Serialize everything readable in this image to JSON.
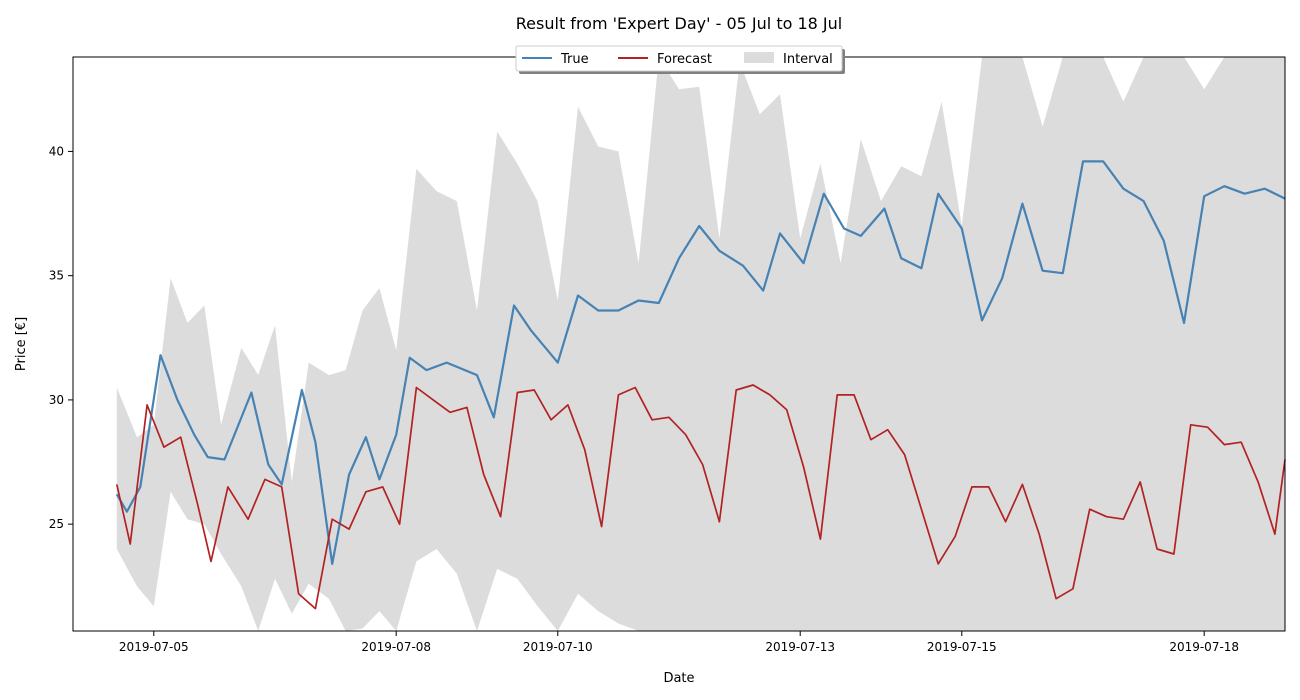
{
  "chart_data": {
    "type": "line",
    "title": "Result from 'Expert Day' - 05 Jul to 18 Jul",
    "xlabel": "Date",
    "ylabel": "Price [€]",
    "x_range": [
      "2019-07-04",
      "2019-07-19"
    ],
    "ylim": [
      20.7,
      43.8
    ],
    "x_ticks": [
      "2019-07-05",
      "2019-07-08",
      "2019-07-10",
      "2019-07-13",
      "2019-07-15",
      "2019-07-18"
    ],
    "y_ticks": [
      25,
      30,
      35,
      40
    ],
    "grid": false,
    "legend_position": "top-center",
    "colors": {
      "true": "#4682b4",
      "forecast": "#b22222",
      "interval": "#dcdcdc"
    },
    "legend": [
      {
        "label": "True",
        "kind": "line",
        "color": "#4682b4"
      },
      {
        "label": "Forecast",
        "kind": "line",
        "color": "#b22222"
      },
      {
        "label": "Interval",
        "kind": "patch",
        "color": "#dcdcdc"
      }
    ],
    "series": [
      {
        "name": "True",
        "x": [
          "2019-07-04 13:00",
          "2019-07-04 16:00",
          "2019-07-04 20:00",
          "2019-07-05 02:00",
          "2019-07-05 07:00",
          "2019-07-05 12:00",
          "2019-07-05 16:00",
          "2019-07-05 21:00",
          "2019-07-06 05:00",
          "2019-07-06 10:00",
          "2019-07-06 14:00",
          "2019-07-06 20:00",
          "2019-07-07 00:00",
          "2019-07-07 05:00",
          "2019-07-07 10:00",
          "2019-07-07 15:00",
          "2019-07-07 19:00",
          "2019-07-08 00:00",
          "2019-07-08 04:00",
          "2019-07-08 09:00",
          "2019-07-08 15:00",
          "2019-07-09 00:00",
          "2019-07-09 05:00",
          "2019-07-09 11:00",
          "2019-07-09 16:00",
          "2019-07-10 00:00",
          "2019-07-10 06:00",
          "2019-07-10 12:00",
          "2019-07-10 18:00",
          "2019-07-11 00:00",
          "2019-07-11 06:00",
          "2019-07-11 12:00",
          "2019-07-11 18:00",
          "2019-07-12 00:00",
          "2019-07-12 07:00",
          "2019-07-12 13:00",
          "2019-07-12 18:00",
          "2019-07-13 01:00",
          "2019-07-13 07:00",
          "2019-07-13 13:00",
          "2019-07-13 18:00",
          "2019-07-14 01:00",
          "2019-07-14 06:00",
          "2019-07-14 12:00",
          "2019-07-14 17:00",
          "2019-07-15 00:00",
          "2019-07-15 06:00",
          "2019-07-15 12:00",
          "2019-07-15 18:00",
          "2019-07-16 00:00",
          "2019-07-16 06:00",
          "2019-07-16 12:00",
          "2019-07-16 18:00",
          "2019-07-17 00:00",
          "2019-07-17 06:00",
          "2019-07-17 12:00",
          "2019-07-17 18:00",
          "2019-07-18 00:00",
          "2019-07-18 06:00",
          "2019-07-18 12:00",
          "2019-07-18 18:00",
          "2019-07-19 00:00"
        ],
        "y": [
          26.2,
          25.5,
          26.5,
          31.8,
          30.0,
          28.6,
          27.7,
          27.6,
          30.3,
          27.4,
          26.6,
          30.4,
          28.3,
          23.4,
          27.0,
          28.5,
          26.8,
          28.6,
          31.7,
          31.2,
          31.5,
          31.0,
          29.3,
          33.8,
          32.8,
          31.5,
          34.2,
          33.6,
          33.6,
          34.0,
          33.9,
          35.7,
          37.0,
          36.0,
          35.4,
          34.4,
          36.7,
          35.5,
          38.3,
          36.9,
          36.6,
          37.7,
          35.7,
          35.3,
          38.3,
          36.9,
          33.2,
          34.9,
          37.9,
          35.2,
          35.1,
          39.6,
          39.6,
          38.5,
          38.0,
          36.4,
          33.1,
          38.2,
          38.6,
          38.3,
          38.5,
          38.1
        ]
      },
      {
        "name": "Forecast",
        "x": [
          "2019-07-04 13:00",
          "2019-07-04 17:00",
          "2019-07-04 22:00",
          "2019-07-05 03:00",
          "2019-07-05 08:00",
          "2019-07-05 13:00",
          "2019-07-05 17:00",
          "2019-07-05 22:00",
          "2019-07-06 04:00",
          "2019-07-06 09:00",
          "2019-07-06 14:00",
          "2019-07-06 19:00",
          "2019-07-07 00:00",
          "2019-07-07 05:00",
          "2019-07-07 10:00",
          "2019-07-07 15:00",
          "2019-07-07 20:00",
          "2019-07-08 01:00",
          "2019-07-08 06:00",
          "2019-07-08 11:00",
          "2019-07-08 16:00",
          "2019-07-08 21:00",
          "2019-07-09 02:00",
          "2019-07-09 07:00",
          "2019-07-09 12:00",
          "2019-07-09 17:00",
          "2019-07-09 22:00",
          "2019-07-10 03:00",
          "2019-07-10 08:00",
          "2019-07-10 13:00",
          "2019-07-10 18:00",
          "2019-07-10 23:00",
          "2019-07-11 04:00",
          "2019-07-11 09:00",
          "2019-07-11 14:00",
          "2019-07-11 19:00",
          "2019-07-12 00:00",
          "2019-07-12 05:00",
          "2019-07-12 10:00",
          "2019-07-12 15:00",
          "2019-07-12 20:00",
          "2019-07-13 01:00",
          "2019-07-13 06:00",
          "2019-07-13 11:00",
          "2019-07-13 16:00",
          "2019-07-13 21:00",
          "2019-07-14 02:00",
          "2019-07-14 07:00",
          "2019-07-14 12:00",
          "2019-07-14 17:00",
          "2019-07-14 22:00",
          "2019-07-15 03:00",
          "2019-07-15 08:00",
          "2019-07-15 13:00",
          "2019-07-15 18:00",
          "2019-07-15 23:00",
          "2019-07-16 04:00",
          "2019-07-16 09:00",
          "2019-07-16 14:00",
          "2019-07-16 19:00",
          "2019-07-17 00:00",
          "2019-07-17 05:00",
          "2019-07-17 10:00",
          "2019-07-17 15:00",
          "2019-07-17 20:00",
          "2019-07-18 01:00",
          "2019-07-18 06:00",
          "2019-07-18 11:00",
          "2019-07-18 16:00",
          "2019-07-18 21:00",
          "2019-07-19 00:00"
        ],
        "y": [
          26.6,
          24.2,
          29.8,
          28.1,
          28.5,
          25.8,
          23.5,
          26.5,
          25.2,
          26.8,
          26.5,
          22.2,
          21.6,
          25.2,
          24.8,
          26.3,
          26.5,
          25.0,
          30.5,
          30.0,
          29.5,
          29.7,
          27.0,
          25.3,
          30.3,
          30.4,
          29.2,
          29.8,
          28.0,
          24.9,
          30.2,
          30.5,
          29.2,
          29.3,
          28.6,
          27.4,
          25.1,
          30.4,
          30.6,
          30.2,
          29.6,
          27.3,
          24.4,
          30.2,
          30.2,
          28.4,
          28.8,
          27.8,
          25.6,
          23.4,
          24.5,
          26.5,
          26.5,
          25.1,
          26.6,
          24.6,
          22.0,
          22.4,
          25.6,
          25.3,
          25.2,
          26.7,
          24.0,
          23.8,
          29.0,
          28.9,
          28.2,
          28.3,
          26.7,
          24.6,
          27.6
        ]
      }
    ],
    "interval": {
      "name": "Interval",
      "x": [
        "2019-07-04 13:00",
        "2019-07-04 19:00",
        "2019-07-05 00:00",
        "2019-07-05 05:00",
        "2019-07-05 10:00",
        "2019-07-05 15:00",
        "2019-07-05 20:00",
        "2019-07-06 02:00",
        "2019-07-06 07:00",
        "2019-07-06 12:00",
        "2019-07-06 17:00",
        "2019-07-06 22:00",
        "2019-07-07 04:00",
        "2019-07-07 09:00",
        "2019-07-07 14:00",
        "2019-07-07 19:00",
        "2019-07-08 00:00",
        "2019-07-08 06:00",
        "2019-07-08 12:00",
        "2019-07-08 18:00",
        "2019-07-09 00:00",
        "2019-07-09 06:00",
        "2019-07-09 12:00",
        "2019-07-09 18:00",
        "2019-07-10 00:00",
        "2019-07-10 06:00",
        "2019-07-10 12:00",
        "2019-07-10 18:00",
        "2019-07-11 00:00",
        "2019-07-11 06:00",
        "2019-07-11 12:00",
        "2019-07-11 18:00",
        "2019-07-12 00:00",
        "2019-07-12 06:00",
        "2019-07-12 12:00",
        "2019-07-12 18:00",
        "2019-07-13 00:00",
        "2019-07-13 06:00",
        "2019-07-13 12:00",
        "2019-07-13 18:00",
        "2019-07-14 00:00",
        "2019-07-14 06:00",
        "2019-07-14 12:00",
        "2019-07-14 18:00",
        "2019-07-15 00:00",
        "2019-07-15 06:00",
        "2019-07-15 12:00",
        "2019-07-15 18:00",
        "2019-07-16 00:00",
        "2019-07-16 06:00",
        "2019-07-16 12:00",
        "2019-07-16 18:00",
        "2019-07-17 00:00",
        "2019-07-17 06:00",
        "2019-07-17 12:00",
        "2019-07-17 18:00",
        "2019-07-18 00:00",
        "2019-07-18 06:00",
        "2019-07-18 12:00",
        "2019-07-18 18:00",
        "2019-07-19 00:00"
      ],
      "upper": [
        30.5,
        28.5,
        29.0,
        34.9,
        33.1,
        33.8,
        29.0,
        32.1,
        31.0,
        33.0,
        26.7,
        31.5,
        31.0,
        31.2,
        33.6,
        34.5,
        32.0,
        39.3,
        38.4,
        38.0,
        33.6,
        40.8,
        39.5,
        38.0,
        34.0,
        41.8,
        40.2,
        40.0,
        35.5,
        43.8,
        42.5,
        42.6,
        36.5,
        43.6,
        41.5,
        42.3,
        36.5,
        39.5,
        35.5,
        40.5,
        38.0,
        39.4,
        39.0,
        42.0,
        37.0,
        43.8,
        43.8,
        43.8,
        41.0,
        43.8,
        43.8,
        43.8,
        42.0,
        43.8,
        43.8,
        43.8,
        42.5,
        43.8,
        43.8,
        43.8,
        43.8
      ],
      "lower": [
        24.0,
        22.5,
        21.7,
        26.3,
        25.2,
        25.0,
        23.8,
        22.5,
        20.7,
        22.8,
        21.4,
        22.6,
        22.0,
        20.7,
        20.8,
        21.5,
        20.7,
        23.5,
        24.0,
        23.0,
        20.7,
        23.2,
        22.8,
        21.7,
        20.7,
        22.2,
        21.5,
        21.0,
        20.7,
        20.7,
        20.7,
        20.7,
        20.7,
        20.7,
        20.7,
        20.7,
        20.7,
        20.7,
        20.7,
        20.7,
        20.7,
        20.7,
        20.7,
        20.7,
        20.7,
        20.7,
        20.7,
        20.7,
        20.7,
        20.7,
        20.7,
        20.7,
        20.7,
        20.7,
        20.7,
        20.7,
        20.7,
        20.7,
        20.7,
        20.7,
        20.7
      ]
    }
  }
}
